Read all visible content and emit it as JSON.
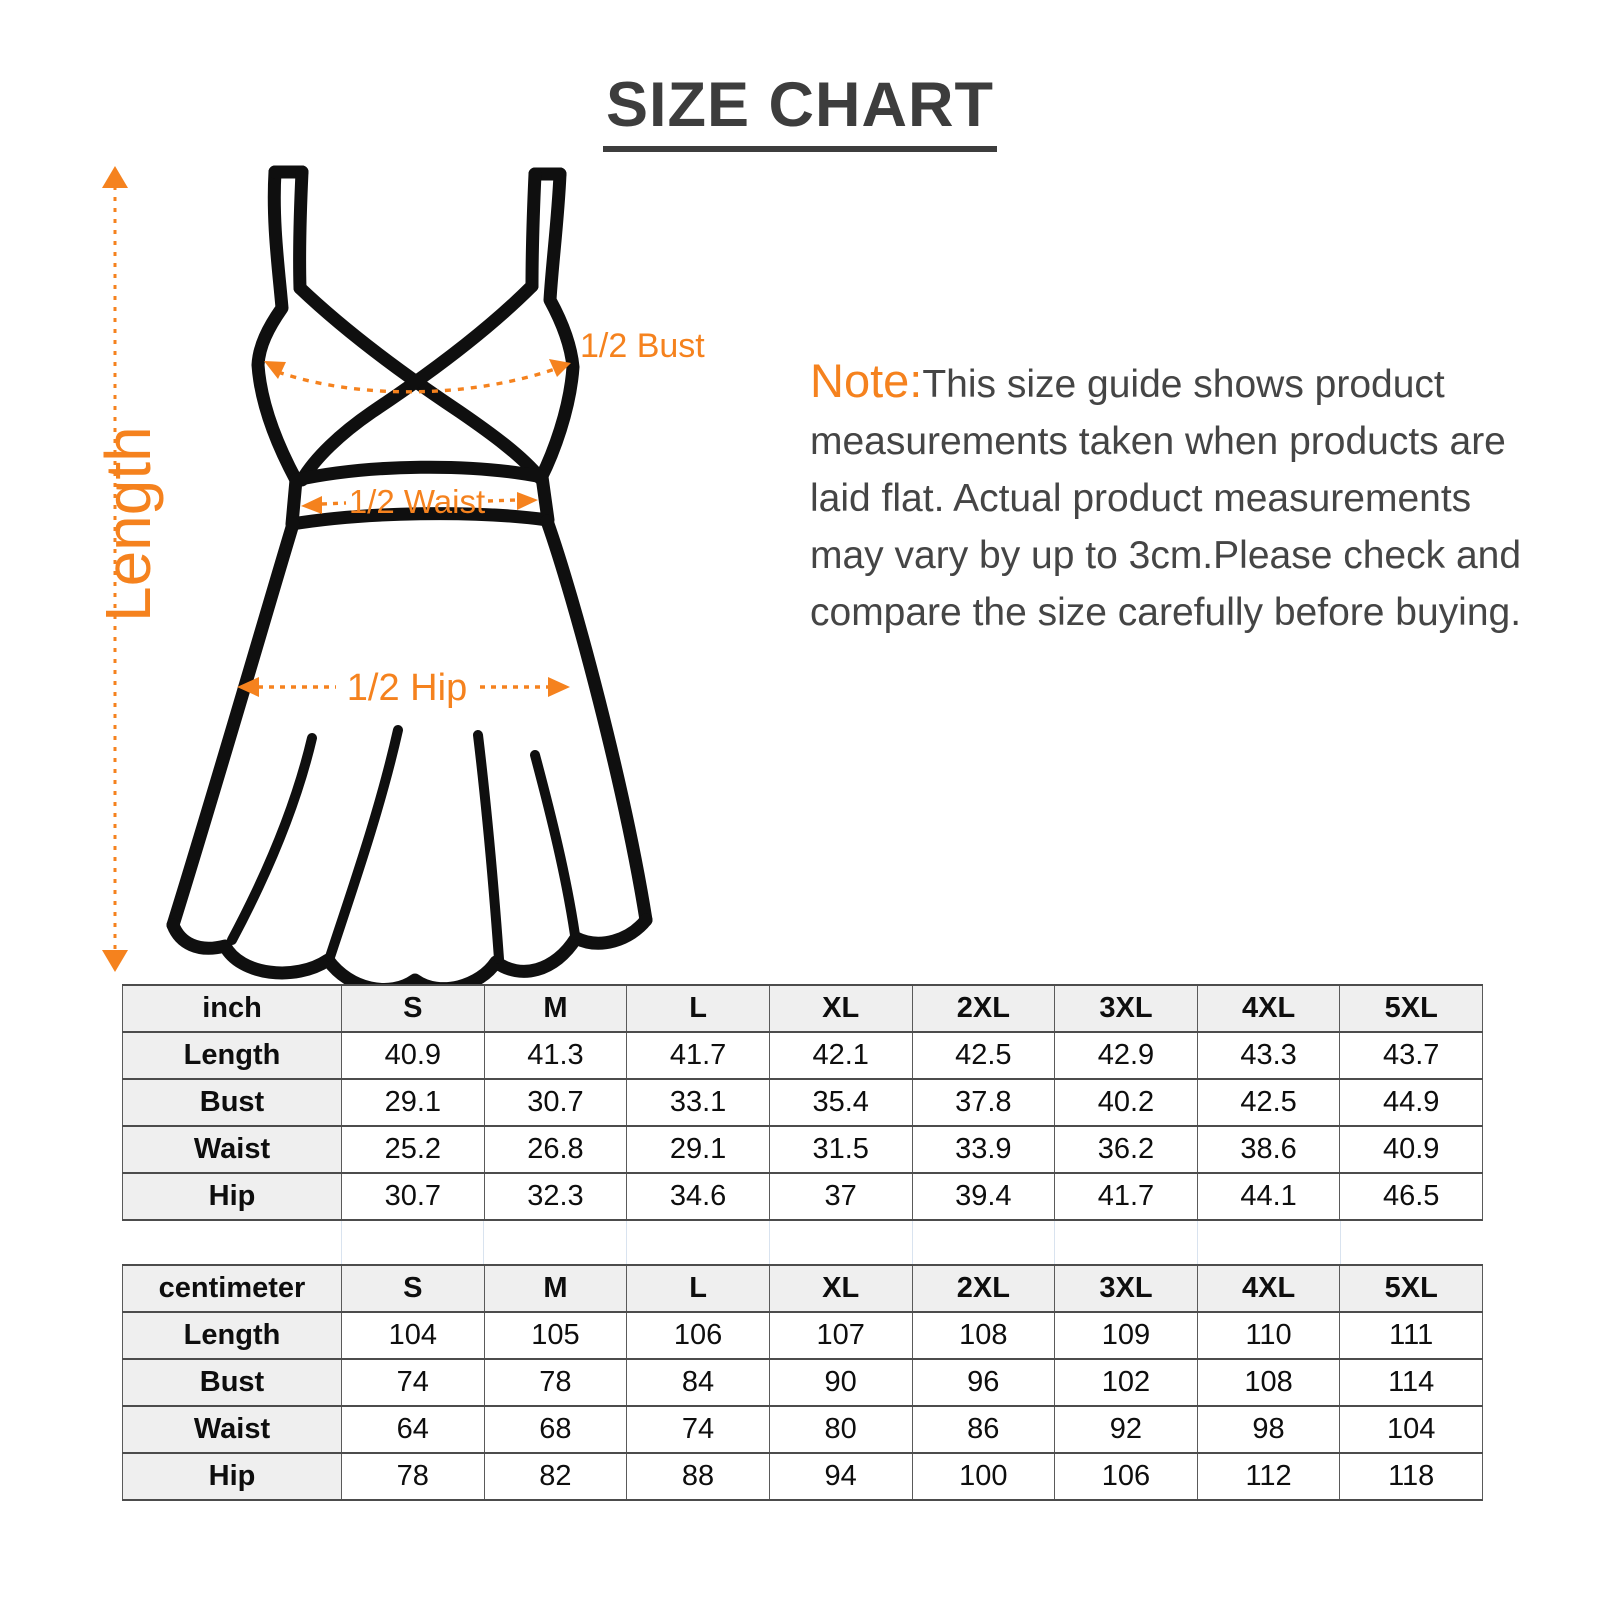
{
  "title": "SIZE CHART",
  "diagram": {
    "length_label": "Length",
    "bust_label": "1/2 Bust",
    "waist_label": "1/2 Waist",
    "hip_label": "1/2 Hip"
  },
  "note": {
    "prefix": "Note:",
    "body": "This size guide shows product measurements taken when products are laid flat. Actual product measurements may vary by up to 3cm.Please check and compare the size carefully before buying."
  },
  "colors": {
    "accent_orange": "#F5821E",
    "title_gray": "#3d3d3d",
    "note_gray": "#454545",
    "table_header_bg": "#efefef",
    "table_border": "#4c4c4c",
    "dress_outline": "#0f0f0f"
  },
  "tables": [
    {
      "unit": "inch",
      "sizes": [
        "S",
        "M",
        "L",
        "XL",
        "2XL",
        "3XL",
        "4XL",
        "5XL"
      ],
      "rows": [
        {
          "label": "Length",
          "values": [
            "40.9",
            "41.3",
            "41.7",
            "42.1",
            "42.5",
            "42.9",
            "43.3",
            "43.7"
          ]
        },
        {
          "label": "Bust",
          "values": [
            "29.1",
            "30.7",
            "33.1",
            "35.4",
            "37.8",
            "40.2",
            "42.5",
            "44.9"
          ]
        },
        {
          "label": "Waist",
          "values": [
            "25.2",
            "26.8",
            "29.1",
            "31.5",
            "33.9",
            "36.2",
            "38.6",
            "40.9"
          ]
        },
        {
          "label": "Hip",
          "values": [
            "30.7",
            "32.3",
            "34.6",
            "37",
            "39.4",
            "41.7",
            "44.1",
            "46.5"
          ]
        }
      ]
    },
    {
      "unit": "centimeter",
      "sizes": [
        "S",
        "M",
        "L",
        "XL",
        "2XL",
        "3XL",
        "4XL",
        "5XL"
      ],
      "rows": [
        {
          "label": "Length",
          "values": [
            "104",
            "105",
            "106",
            "107",
            "108",
            "109",
            "110",
            "111"
          ]
        },
        {
          "label": "Bust",
          "values": [
            "74",
            "78",
            "84",
            "90",
            "96",
            "102",
            "108",
            "114"
          ]
        },
        {
          "label": "Waist",
          "values": [
            "64",
            "68",
            "74",
            "80",
            "86",
            "92",
            "98",
            "104"
          ]
        },
        {
          "label": "Hip",
          "values": [
            "78",
            "82",
            "88",
            "94",
            "100",
            "106",
            "112",
            "118"
          ]
        }
      ]
    }
  ]
}
